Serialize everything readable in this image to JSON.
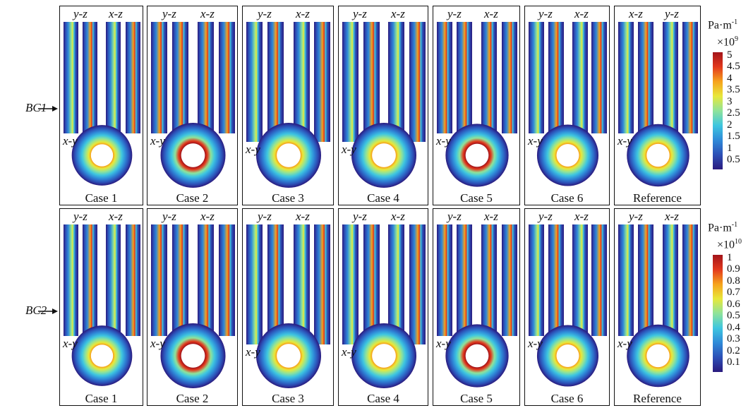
{
  "rows": [
    {
      "label": "BC1",
      "colorbar": {
        "unit": "Pa·m",
        "unit_exp": "-1",
        "scale_base": "×10",
        "scale_exp": "9",
        "ticks": [
          "5",
          "4.5",
          "4",
          "3.5",
          "3",
          "2.5",
          "2",
          "1.5",
          "1",
          "0.5"
        ]
      },
      "panels": [
        {
          "case": "Case 1",
          "view_left": "y-z",
          "view_right": "x-z",
          "section": "x-y"
        },
        {
          "case": "Case 2",
          "view_left": "y-z",
          "view_right": "x-z",
          "section": "x-y"
        },
        {
          "case": "Case 3",
          "view_left": "y-z",
          "view_right": "x-z",
          "section": "x-y"
        },
        {
          "case": "Case 4",
          "view_left": "y-z",
          "view_right": "x-z",
          "section": "x-y"
        },
        {
          "case": "Case 5",
          "view_left": "y-z",
          "view_right": "x-z",
          "section": "x-y"
        },
        {
          "case": "Case 6",
          "view_left": "y-z",
          "view_right": "x-z",
          "section": "x-y"
        },
        {
          "case": "Reference",
          "view_left": "x-z",
          "view_right": "y-z",
          "section": "x-y"
        }
      ]
    },
    {
      "label": "BC2",
      "colorbar": {
        "unit": "Pa·m",
        "unit_exp": "-1",
        "scale_base": "×10",
        "scale_exp": "10",
        "ticks": [
          "1",
          "0.9",
          "0.8",
          "0.7",
          "0.6",
          "0.5",
          "0.4",
          "0.3",
          "0.2",
          "0.1"
        ]
      },
      "panels": [
        {
          "case": "Case 1",
          "view_left": "y-z",
          "view_right": "x-z",
          "section": "x-y"
        },
        {
          "case": "Case 2",
          "view_left": "y-z",
          "view_right": "x-z",
          "section": "x-y"
        },
        {
          "case": "Case 3",
          "view_left": "y-z",
          "view_right": "x-z",
          "section": "x-y"
        },
        {
          "case": "Case 4",
          "view_left": "y-z",
          "view_right": "x-z",
          "section": "x-y"
        },
        {
          "case": "Case 5",
          "view_left": "y-z",
          "view_right": "x-z",
          "section": "x-y"
        },
        {
          "case": "Case 6",
          "view_left": "y-z",
          "view_right": "x-z",
          "section": "x-y"
        },
        {
          "case": "Reference",
          "view_left": "y-z",
          "view_right": "x-z",
          "section": "x-y"
        }
      ]
    }
  ],
  "colormap": [
    "#2a1a7e",
    "#2c4fb6",
    "#2f8ad8",
    "#3ec6e0",
    "#8fe39a",
    "#e8e83a",
    "#f6a21c",
    "#e2381c",
    "#a3141a"
  ]
}
